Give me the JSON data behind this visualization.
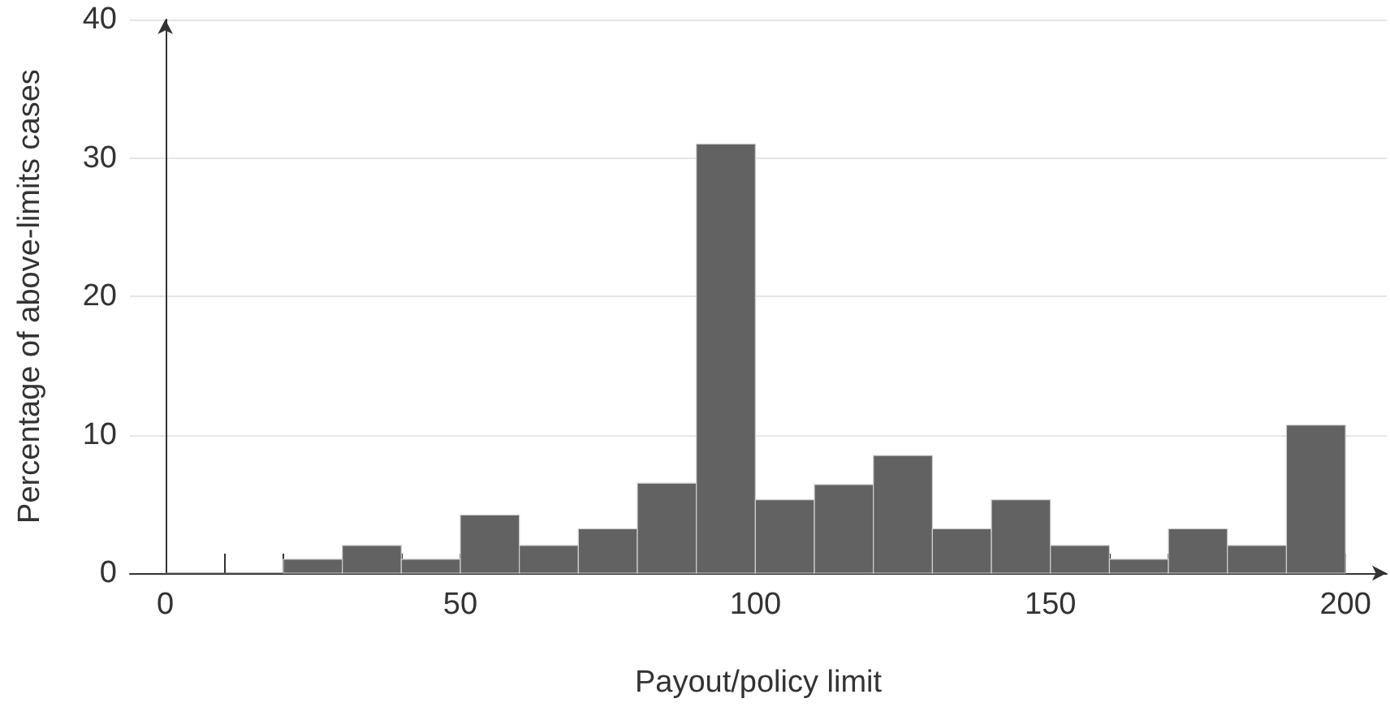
{
  "chart_data": {
    "type": "histogram",
    "xlabel": "Payout/policy limit",
    "ylabel": "Percentage of above-limits cases",
    "bins": [
      0,
      10,
      20,
      30,
      40,
      50,
      60,
      70,
      80,
      90,
      100,
      110,
      120,
      130,
      140,
      150,
      160,
      170,
      180,
      190,
      200
    ],
    "values": [
      0,
      0,
      1,
      2,
      1,
      4.2,
      2,
      3.2,
      6.5,
      31,
      5.3,
      6.4,
      8.5,
      3.2,
      5.3,
      2,
      1,
      3.2,
      2,
      10.7
    ],
    "color": "#626262",
    "xlim": [
      -6,
      207
    ],
    "xticks": [
      0,
      {
        "value": 10,
        "label": null
      },
      {
        "value": 20,
        "label": null
      },
      {
        "value": 30,
        "label": null
      },
      {
        "value": 40,
        "label": null
      },
      50,
      {
        "value": 60,
        "label": null
      },
      {
        "value": 70,
        "label": null
      },
      {
        "value": 80,
        "label": null
      },
      {
        "value": 90,
        "label": null
      },
      100,
      {
        "value": 110,
        "label": null
      },
      {
        "value": 120,
        "label": null
      },
      {
        "value": 130,
        "label": null
      },
      {
        "value": 140,
        "label": null
      },
      150,
      {
        "value": 160,
        "label": null
      },
      {
        "value": 170,
        "label": null
      },
      {
        "value": 180,
        "label": null
      },
      {
        "value": 190,
        "label": null
      },
      200
    ],
    "ylim": [
      0,
      40
    ],
    "yticks": [
      0,
      10,
      20,
      30,
      40
    ],
    "grid": "y"
  }
}
